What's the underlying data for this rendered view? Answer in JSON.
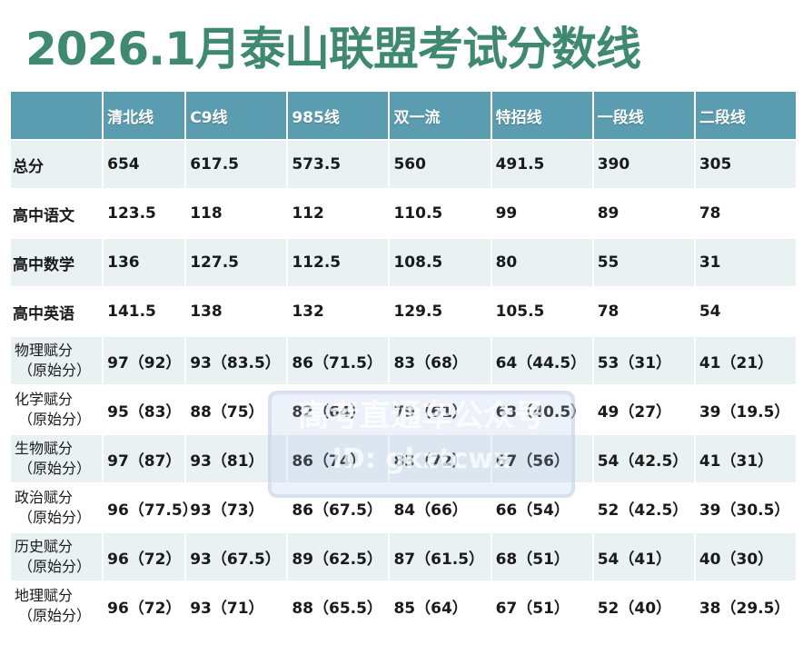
{
  "title": "2026.1月泰山联盟考试分数线",
  "table": {
    "headers": [
      "",
      "清北线",
      "C9线",
      "985线",
      "双一流",
      "特招线",
      "一段线",
      "二段线"
    ],
    "rows": [
      {
        "label": [
          "总分"
        ],
        "values": [
          "654",
          "617.5",
          "573.5",
          "560",
          "491.5",
          "390",
          "305"
        ]
      },
      {
        "label": [
          "高中语文"
        ],
        "values": [
          "123.5",
          "118",
          "112",
          "110.5",
          "99",
          "89",
          "78"
        ]
      },
      {
        "label": [
          "高中数学"
        ],
        "values": [
          "136",
          "127.5",
          "112.5",
          "108.5",
          "80",
          "55",
          "31"
        ]
      },
      {
        "label": [
          "高中英语"
        ],
        "values": [
          "141.5",
          "138",
          "132",
          "129.5",
          "105.5",
          "78",
          "54"
        ]
      },
      {
        "label": [
          "物理赋分",
          "（原始分）"
        ],
        "values": [
          "97（92）",
          "93（83.5）",
          "86（71.5）",
          "83（68）",
          "64（44.5）",
          "53（31）",
          "41（21）"
        ]
      },
      {
        "label": [
          "化学赋分",
          "（原始分）"
        ],
        "values": [
          "95（83）",
          "88（75）",
          "82（64）",
          "79（61）",
          "63（40.5）",
          "49（27）",
          "39（19.5）"
        ]
      },
      {
        "label": [
          "生物赋分",
          "（原始分）"
        ],
        "values": [
          "97（87）",
          "93（81）",
          "86（74）",
          "83（72）",
          "67（56）",
          "54（42.5）",
          "41（31）"
        ]
      },
      {
        "label": [
          "政治赋分",
          "（原始分）"
        ],
        "values": [
          "96（77.5）",
          "93（73）",
          "86（67.5）",
          "84（66）",
          "66（54）",
          "52（42.5）",
          "39（30.5）"
        ]
      },
      {
        "label": [
          "历史赋分",
          "（原始分）"
        ],
        "values": [
          "96（72）",
          "93（67.5）",
          "89（62.5）",
          "87（61.5）",
          "68（51）",
          "54（41）",
          "40（30）"
        ]
      },
      {
        "label": [
          "地理赋分",
          "（原始分）"
        ],
        "values": [
          "96（72）",
          "93（71）",
          "88（65.5）",
          "85（64）",
          "67（51）",
          "52（40）",
          "38（29.5）"
        ]
      }
    ]
  },
  "watermark": {
    "line1": "高考直通车公众号",
    "line2": "ID: gkztcwx"
  },
  "colors": {
    "title": "#3f8a6e",
    "header_bg": "#5b9db0",
    "row_shade": "#e9f1f2"
  }
}
